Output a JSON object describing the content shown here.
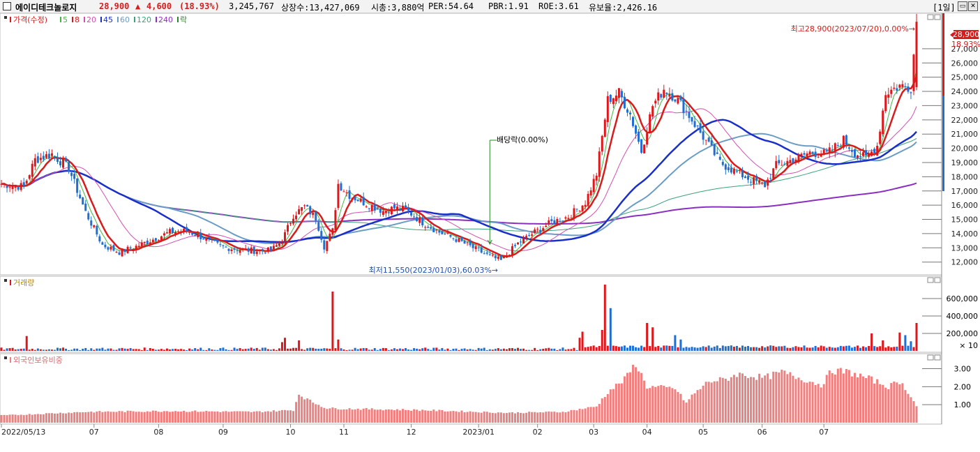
{
  "header": {
    "stock_name": "에이디테크놀로지",
    "price": "28,900",
    "change_arrow": "▲",
    "change": "4,600",
    "change_pct": "(18.93%)",
    "volume": "3,245,767",
    "listed": "상장수:13,427,069",
    "market_cap": "시총:3,880억",
    "per": "PER:54.64",
    "pbr": "PBR:1.91",
    "roe": "ROE:3.61",
    "reserve": "유보율:2,426.16",
    "period": "[1일]"
  },
  "colors": {
    "up": "#e0161b",
    "down": "#1f6ed4",
    "ma5": "#3fb83f",
    "ma8": "#d81b1b",
    "ma20": "#d64fb0",
    "ma45": "#1a2ec8",
    "ma60": "#6a9cc8",
    "ma120": "#3aa37a",
    "ma240": "#8a2fc2",
    "foreign": "#f08080"
  },
  "legend_price": {
    "price_label": "가격(수정)",
    "items": [
      {
        "label": "5",
        "color": "#3fb83f"
      },
      {
        "label": "8",
        "color": "#d81b1b"
      },
      {
        "label": "20",
        "color": "#d64fb0"
      },
      {
        "label": "45",
        "color": "#1a2ec8"
      },
      {
        "label": "60",
        "color": "#6a9cc8"
      },
      {
        "label": "120",
        "color": "#3aa37a"
      },
      {
        "label": "240",
        "color": "#8a2fc2"
      },
      {
        "label": "락",
        "color": "#2a8a2a"
      }
    ]
  },
  "volume_label": "거래량",
  "foreign_label": "외국인보유비중",
  "annotations": {
    "high": "최고28,900(2023/07/20),0.00%→",
    "low": "최저11,550(2023/01/03),60.03%→",
    "dividend": "배당락(0.00%)"
  },
  "price_badge": {
    "price": "28,900",
    "pct": "18.93%"
  },
  "chart_data": [
    {
      "type": "candlestick",
      "title": "가격(수정)",
      "y_ticks": [
        "12,000",
        "13,000",
        "14,000",
        "15,000",
        "16,000",
        "17,000",
        "18,000",
        "19,000",
        "20,000",
        "21,000",
        "22,000",
        "23,000",
        "24,000",
        "25,000",
        "26,000",
        "27,000"
      ],
      "ylim": [
        11200,
        29300
      ],
      "x_labels": [
        "2022/05/13",
        "07",
        "08",
        "09",
        "10",
        "11",
        "12",
        "2023/01",
        "02",
        "03",
        "04",
        "05",
        "06",
        "07"
      ],
      "anchors": [
        [
          0,
          17500
        ],
        [
          8,
          17300
        ],
        [
          12,
          19200
        ],
        [
          18,
          19600
        ],
        [
          24,
          18600
        ],
        [
          30,
          15500
        ],
        [
          36,
          13200
        ],
        [
          42,
          12700
        ],
        [
          48,
          13100
        ],
        [
          54,
          13600
        ],
        [
          60,
          14100
        ],
        [
          66,
          14200
        ],
        [
          72,
          13700
        ],
        [
          78,
          13100
        ],
        [
          84,
          12900
        ],
        [
          90,
          12800
        ],
        [
          96,
          12800
        ],
        [
          100,
          13500
        ],
        [
          104,
          15300
        ],
        [
          108,
          15900
        ],
        [
          112,
          15100
        ],
        [
          115,
          13100
        ],
        [
          118,
          14200
        ],
        [
          120,
          17500
        ],
        [
          124,
          16700
        ],
        [
          130,
          16100
        ],
        [
          136,
          15600
        ],
        [
          140,
          15800
        ],
        [
          144,
          15700
        ],
        [
          150,
          14800
        ],
        [
          156,
          14100
        ],
        [
          162,
          13600
        ],
        [
          168,
          13000
        ],
        [
          174,
          12400
        ],
        [
          178,
          12100
        ],
        [
          184,
          13300
        ],
        [
          190,
          14100
        ],
        [
          196,
          14800
        ],
        [
          202,
          15200
        ],
        [
          208,
          16200
        ],
        [
          212,
          18200
        ],
        [
          216,
          23400
        ],
        [
          220,
          23900
        ],
        [
          224,
          22400
        ],
        [
          228,
          19800
        ],
        [
          232,
          23000
        ],
        [
          236,
          24200
        ],
        [
          240,
          23600
        ],
        [
          244,
          22600
        ],
        [
          248,
          21400
        ],
        [
          252,
          20200
        ],
        [
          256,
          19000
        ],
        [
          262,
          18300
        ],
        [
          268,
          17700
        ],
        [
          272,
          17400
        ],
        [
          276,
          18800
        ],
        [
          282,
          19200
        ],
        [
          288,
          19700
        ],
        [
          294,
          19600
        ],
        [
          300,
          20600
        ],
        [
          304,
          19700
        ],
        [
          308,
          19300
        ],
        [
          312,
          20200
        ],
        [
          315,
          23900
        ],
        [
          320,
          24400
        ],
        [
          324,
          24300
        ],
        [
          326,
          28900
        ]
      ],
      "n_candles": 327,
      "dividend_index": 174
    },
    {
      "type": "bar",
      "title": "거래량",
      "y_ticks": [
        "200,000",
        "400,000",
        "600,000"
      ],
      "unit_label": "× 10",
      "ymax": 800000,
      "spikes": [
        [
          9,
          170000
        ],
        [
          100,
          100000
        ],
        [
          101,
          150000
        ],
        [
          106,
          120000
        ],
        [
          118,
          680000
        ],
        [
          120,
          130000
        ],
        [
          206,
          150000
        ],
        [
          207,
          220000
        ],
        [
          214,
          240000
        ],
        [
          215,
          760000
        ],
        [
          217,
          490000
        ],
        [
          230,
          320000
        ],
        [
          232,
          270000
        ],
        [
          240,
          180000
        ],
        [
          242,
          130000
        ],
        [
          310,
          200000
        ],
        [
          314,
          120000
        ],
        [
          320,
          210000
        ],
        [
          322,
          180000
        ],
        [
          324,
          110000
        ],
        [
          326,
          320000
        ]
      ]
    },
    {
      "type": "bar",
      "title": "외국인보유비중",
      "y_ticks": [
        "1.00",
        "2.00",
        "3.00"
      ],
      "ymax": 3.6,
      "anchors": [
        [
          0,
          0.4
        ],
        [
          30,
          0.6
        ],
        [
          60,
          0.65
        ],
        [
          90,
          0.6
        ],
        [
          104,
          0.7
        ],
        [
          106,
          1.6
        ],
        [
          110,
          1.2
        ],
        [
          116,
          0.8
        ],
        [
          150,
          0.7
        ],
        [
          180,
          0.55
        ],
        [
          200,
          0.6
        ],
        [
          212,
          0.9
        ],
        [
          216,
          1.7
        ],
        [
          222,
          2.4
        ],
        [
          226,
          3.3
        ],
        [
          230,
          2.0
        ],
        [
          240,
          1.9
        ],
        [
          244,
          1.1
        ],
        [
          246,
          1.5
        ],
        [
          252,
          2.3
        ],
        [
          258,
          2.4
        ],
        [
          262,
          2.7
        ],
        [
          272,
          2.5
        ],
        [
          278,
          2.8
        ],
        [
          286,
          2.4
        ],
        [
          292,
          2.1
        ],
        [
          296,
          2.9
        ],
        [
          302,
          2.8
        ],
        [
          310,
          2.4
        ],
        [
          316,
          2.0
        ],
        [
          320,
          2.3
        ],
        [
          324,
          1.5
        ],
        [
          326,
          0.9
        ]
      ]
    }
  ]
}
